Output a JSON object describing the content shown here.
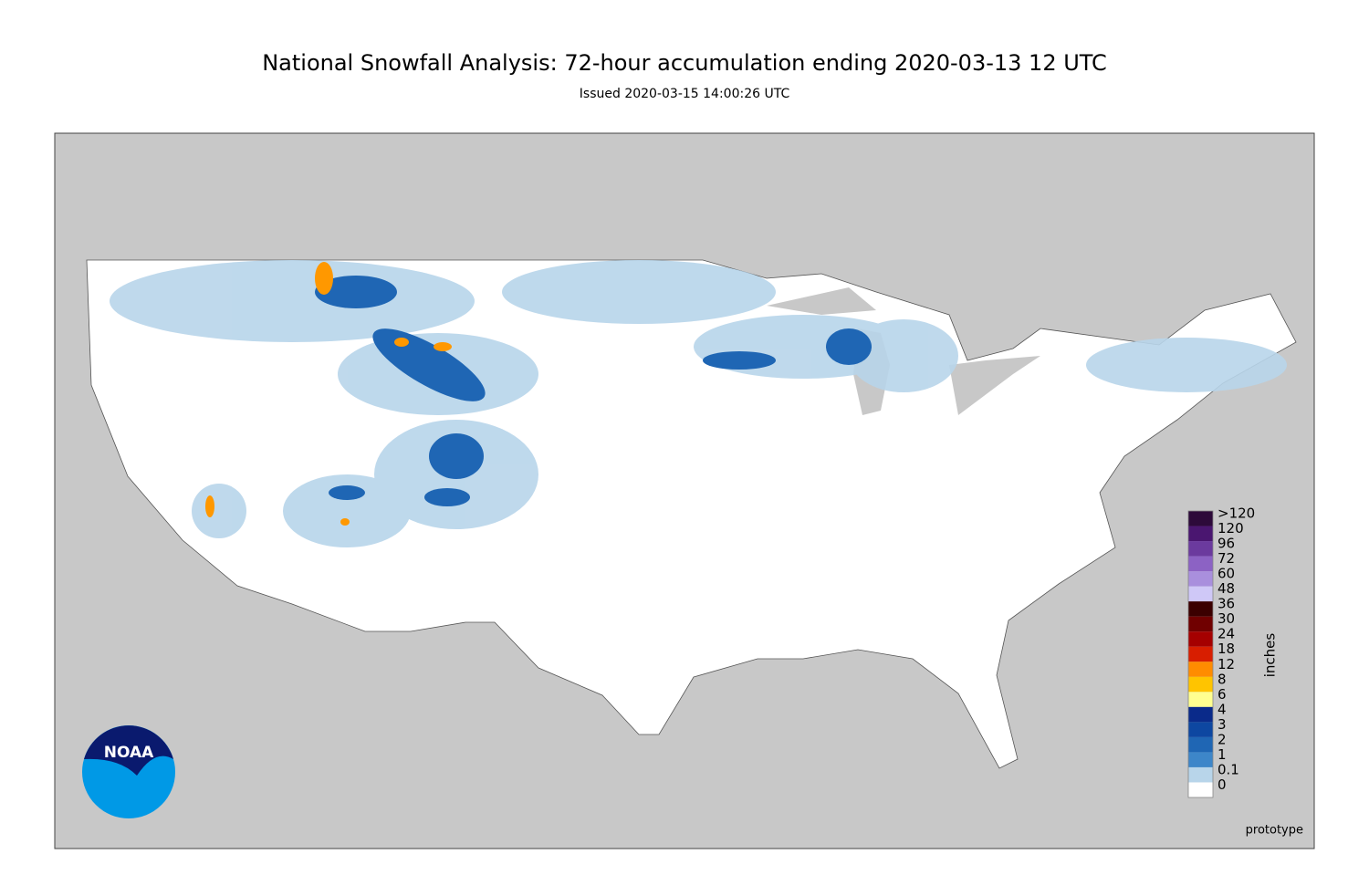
{
  "header": {
    "title": "National Snowfall Analysis: 72-hour accumulation ending 2020-03-13 12 UTC",
    "subtitle": "Issued 2020-03-15 14:00:26 UTC"
  },
  "legend": {
    "unit": "inches",
    "items": [
      {
        "label": ">120",
        "color": "#2d0a3a"
      },
      {
        "label": "120",
        "color": "#4a1670"
      },
      {
        "label": "96",
        "color": "#6b3a9e"
      },
      {
        "label": "72",
        "color": "#8c62c4"
      },
      {
        "label": "60",
        "color": "#a98fdd"
      },
      {
        "label": "48",
        "color": "#cfc8f7"
      },
      {
        "label": "36",
        "color": "#3b0000"
      },
      {
        "label": "30",
        "color": "#700000"
      },
      {
        "label": "24",
        "color": "#a50000"
      },
      {
        "label": "18",
        "color": "#d81e00"
      },
      {
        "label": "12",
        "color": "#ff8c00"
      },
      {
        "label": "8",
        "color": "#ffc400"
      },
      {
        "label": "6",
        "color": "#ffff90"
      },
      {
        "label": "4",
        "color": "#0a2a8a"
      },
      {
        "label": "3",
        "color": "#0d47a1"
      },
      {
        "label": "2",
        "color": "#1f66b4"
      },
      {
        "label": "1",
        "color": "#3d86c9"
      },
      {
        "label": "0.1",
        "color": "#b8d5ea"
      },
      {
        "label": "0",
        "color": "#ffffff"
      }
    ]
  },
  "logo": {
    "text": "NOAA"
  },
  "footer": {
    "note": "prototype"
  }
}
